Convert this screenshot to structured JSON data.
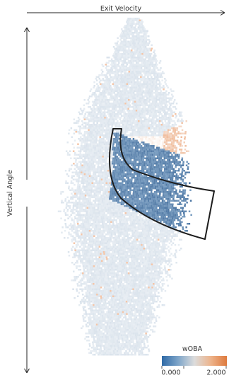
{
  "chart_data": {
    "type": "heatmap",
    "x_label": "Exit Velocity",
    "y_label": "Vertical Angle",
    "color_scale": {
      "title": "wOBA",
      "min_label": "0.000",
      "max_label": "2.000",
      "min": 0,
      "max": 2,
      "low_color": "#2b6aa8",
      "high_color": "#e0722a"
    },
    "highlight_region": "barrel zone (outlined)",
    "grid": false
  }
}
